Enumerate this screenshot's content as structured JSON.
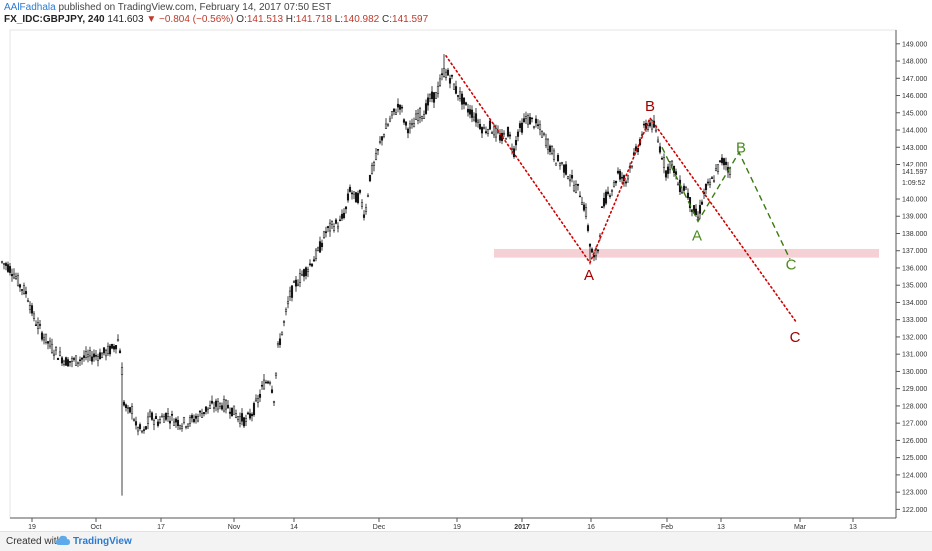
{
  "header": {
    "author": "AAlFadhala",
    "published": "published on TradingView.com, February 14, 2017 07:50 EST",
    "symbol": "FX_IDC:GBPJPY, 240",
    "price": "141.603",
    "arrow": "▼",
    "change": "−0.804 (−0.56%)",
    "o_label": "O:",
    "o_value": "141.513",
    "h_label": "H:",
    "h_value": "141.718",
    "l_label": "L:",
    "l_value": "140.982",
    "c_label": "C:",
    "c_value": "141.597"
  },
  "footer": {
    "created": "Created with",
    "brand": "TradingView"
  },
  "chart_data": {
    "type": "candlestick",
    "ylim": [
      121.5,
      149.8
    ],
    "y_ticks": [
      "122.000",
      "123.000",
      "124.000",
      "125.000",
      "126.000",
      "127.000",
      "128.000",
      "129.000",
      "130.000",
      "131.000",
      "132.000",
      "133.000",
      "134.000",
      "135.000",
      "136.000",
      "137.000",
      "138.000",
      "139.000",
      "140.000",
      "142.000",
      "143.000",
      "144.000",
      "145.000",
      "146.000",
      "147.000",
      "148.000",
      "149.000"
    ],
    "price_label": "141.597",
    "time_label": "1:09:52",
    "x_ticks": [
      "19",
      "Oct",
      "17",
      "Nov",
      "14",
      "Dec",
      "19",
      "2017",
      "16",
      "Feb",
      "13",
      "Mar",
      "13"
    ],
    "price_path": [
      [
        0,
        136.4
      ],
      [
        6,
        136.2
      ],
      [
        13,
        135.8
      ],
      [
        20,
        135.0
      ],
      [
        27,
        134.5
      ],
      [
        34,
        133.1
      ],
      [
        42,
        132.2
      ],
      [
        50,
        131.5
      ],
      [
        58,
        131.0
      ],
      [
        66,
        130.6
      ],
      [
        74,
        130.6
      ],
      [
        84,
        130.8
      ],
      [
        93,
        130.9
      ],
      [
        102,
        131.0
      ],
      [
        112,
        131.3
      ],
      [
        118,
        131.8
      ],
      [
        121,
        131.0
      ],
      [
        124,
        128.2
      ],
      [
        128,
        127.6
      ],
      [
        132,
        127.8
      ],
      [
        136,
        126.8
      ],
      [
        140,
        126.6
      ],
      [
        144,
        126.4
      ],
      [
        150,
        127.4
      ],
      [
        158,
        127.1
      ],
      [
        166,
        127.5
      ],
      [
        174,
        127.2
      ],
      [
        182,
        127.0
      ],
      [
        190,
        127.1
      ],
      [
        198,
        127.4
      ],
      [
        206,
        127.8
      ],
      [
        214,
        128.0
      ],
      [
        222,
        128.1
      ],
      [
        230,
        127.9
      ],
      [
        238,
        127.4
      ],
      [
        246,
        127.1
      ],
      [
        252,
        127.6
      ],
      [
        258,
        128.3
      ],
      [
        264,
        129.3
      ],
      [
        270,
        129.6
      ],
      [
        274,
        128.5
      ],
      [
        278,
        131.3
      ],
      [
        284,
        132.8
      ],
      [
        290,
        134.4
      ],
      [
        296,
        135.1
      ],
      [
        302,
        135.6
      ],
      [
        310,
        136.2
      ],
      [
        318,
        136.9
      ],
      [
        326,
        138.1
      ],
      [
        334,
        138.5
      ],
      [
        340,
        138.6
      ],
      [
        346,
        139.4
      ],
      [
        350,
        140.6
      ],
      [
        355,
        140.0
      ],
      [
        360,
        140.2
      ],
      [
        365,
        139.0
      ],
      [
        370,
        141.3
      ],
      [
        376,
        142.3
      ],
      [
        382,
        143.6
      ],
      [
        388,
        144.3
      ],
      [
        394,
        145.0
      ],
      [
        400,
        145.5
      ],
      [
        406,
        144.2
      ],
      [
        412,
        144.1
      ],
      [
        418,
        144.9
      ],
      [
        424,
        145.0
      ],
      [
        430,
        145.8
      ],
      [
        436,
        146.0
      ],
      [
        440,
        146.7
      ],
      [
        444,
        147.4
      ],
      [
        448,
        147.2
      ],
      [
        452,
        146.9
      ],
      [
        456,
        146.3
      ],
      [
        460,
        146.0
      ],
      [
        466,
        145.3
      ],
      [
        472,
        145.0
      ],
      [
        478,
        144.5
      ],
      [
        484,
        144.0
      ],
      [
        490,
        144.2
      ],
      [
        496,
        143.8
      ],
      [
        502,
        143.5
      ],
      [
        508,
        143.9
      ],
      [
        514,
        142.8
      ],
      [
        518,
        143.9
      ],
      [
        522,
        144.2
      ],
      [
        526,
        144.7
      ],
      [
        532,
        144.5
      ],
      [
        538,
        144.2
      ],
      [
        544,
        143.6
      ],
      [
        550,
        143.0
      ],
      [
        556,
        142.3
      ],
      [
        562,
        142.0
      ],
      [
        568,
        141.5
      ],
      [
        574,
        140.8
      ],
      [
        580,
        140.4
      ],
      [
        586,
        139.2
      ],
      [
        590,
        137.4
      ],
      [
        594,
        136.5
      ],
      [
        598,
        137.1
      ],
      [
        602,
        139.3
      ],
      [
        606,
        140.1
      ],
      [
        610,
        140.5
      ],
      [
        614,
        140.8
      ],
      [
        618,
        141.5
      ],
      [
        622,
        141.3
      ],
      [
        626,
        141.0
      ],
      [
        630,
        141.9
      ],
      [
        634,
        142.4
      ],
      [
        638,
        143.0
      ],
      [
        642,
        143.8
      ],
      [
        646,
        144.2
      ],
      [
        650,
        144.4
      ],
      [
        654,
        144.2
      ],
      [
        658,
        143.4
      ],
      [
        662,
        142.6
      ],
      [
        666,
        141.6
      ],
      [
        670,
        142.0
      ],
      [
        674,
        141.8
      ],
      [
        678,
        140.9
      ],
      [
        682,
        140.6
      ],
      [
        686,
        140.7
      ],
      [
        690,
        139.8
      ],
      [
        694,
        139.3
      ],
      [
        698,
        138.9
      ],
      [
        702,
        139.9
      ],
      [
        706,
        140.6
      ],
      [
        710,
        140.8
      ],
      [
        714,
        141.3
      ],
      [
        718,
        141.8
      ],
      [
        722,
        142.2
      ],
      [
        726,
        142.1
      ],
      [
        730,
        141.6
      ]
    ],
    "annotations": {
      "red_dotted": [
        [
          446,
          148.3
        ],
        [
          590,
          136.3
        ],
        [
          650,
          144.7
        ],
        [
          797,
          132.8
        ]
      ],
      "green_dashed": [
        [
          662,
          143.0
        ],
        [
          698,
          138.7
        ],
        [
          739,
          142.7
        ],
        [
          790,
          136.5
        ]
      ],
      "red_labels": [
        {
          "text": "A",
          "x": 589,
          "y": 135.3
        },
        {
          "text": "B",
          "x": 650,
          "y": 145.1
        },
        {
          "text": "C",
          "x": 795,
          "y": 131.7
        }
      ],
      "green_labels": [
        {
          "text": "A",
          "x": 697,
          "y": 137.6
        },
        {
          "text": "B",
          "x": 741,
          "y": 142.7
        },
        {
          "text": "C",
          "x": 791,
          "y": 135.9
        }
      ],
      "zone": [
        136.6,
        137.1
      ]
    }
  }
}
